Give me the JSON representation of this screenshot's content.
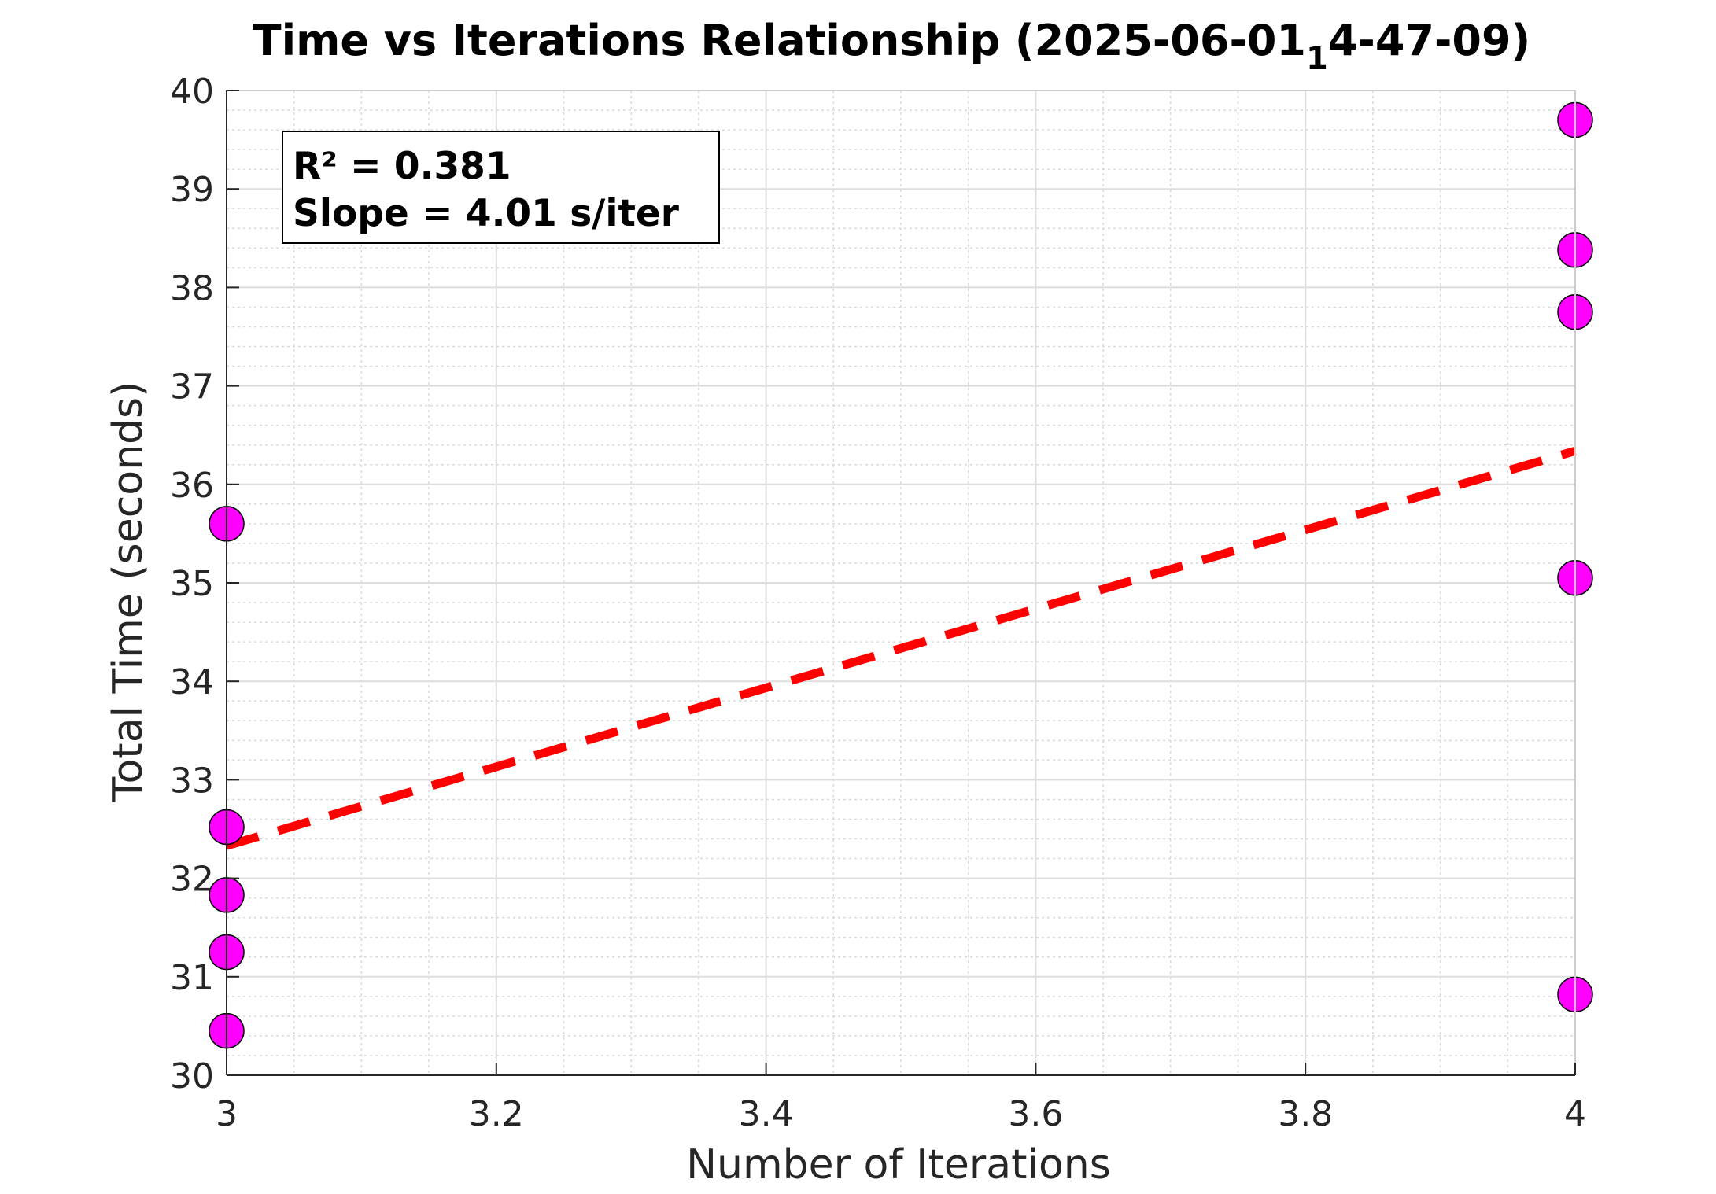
{
  "chart_data": {
    "type": "scatter",
    "title_main": "Time vs Iterations Relationship (2025-06-01",
    "title_sub": "1",
    "title_tail": "4-47-09)",
    "xlabel": "Number of Iterations",
    "ylabel": "Total Time (seconds)",
    "xlim": [
      3,
      4
    ],
    "ylim": [
      30,
      40
    ],
    "xticks": [
      3,
      3.2,
      3.4,
      3.6,
      3.8,
      4
    ],
    "xtick_labels": [
      "3",
      "3.2",
      "3.4",
      "3.6",
      "3.8",
      "4"
    ],
    "yticks": [
      30,
      31,
      32,
      33,
      34,
      35,
      36,
      37,
      38,
      39,
      40
    ],
    "ytick_labels": [
      "30",
      "31",
      "32",
      "33",
      "34",
      "35",
      "36",
      "37",
      "38",
      "39",
      "40"
    ],
    "grid": true,
    "minor_grid": true,
    "points": [
      {
        "x": 3,
        "y": 35.6
      },
      {
        "x": 3,
        "y": 32.52
      },
      {
        "x": 3,
        "y": 31.83
      },
      {
        "x": 3,
        "y": 31.25
      },
      {
        "x": 3,
        "y": 30.45
      },
      {
        "x": 4,
        "y": 39.7
      },
      {
        "x": 4,
        "y": 38.38
      },
      {
        "x": 4,
        "y": 37.75
      },
      {
        "x": 4,
        "y": 35.05
      },
      {
        "x": 4,
        "y": 30.82
      }
    ],
    "fit_line": {
      "x": [
        3,
        4
      ],
      "y": [
        32.33,
        36.34
      ]
    },
    "marker_color": "#ff00ff",
    "fit_color": "#ff0000",
    "annotation_lines": [
      "R² = 0.381",
      "Slope = 4.01 s/iter"
    ]
  }
}
